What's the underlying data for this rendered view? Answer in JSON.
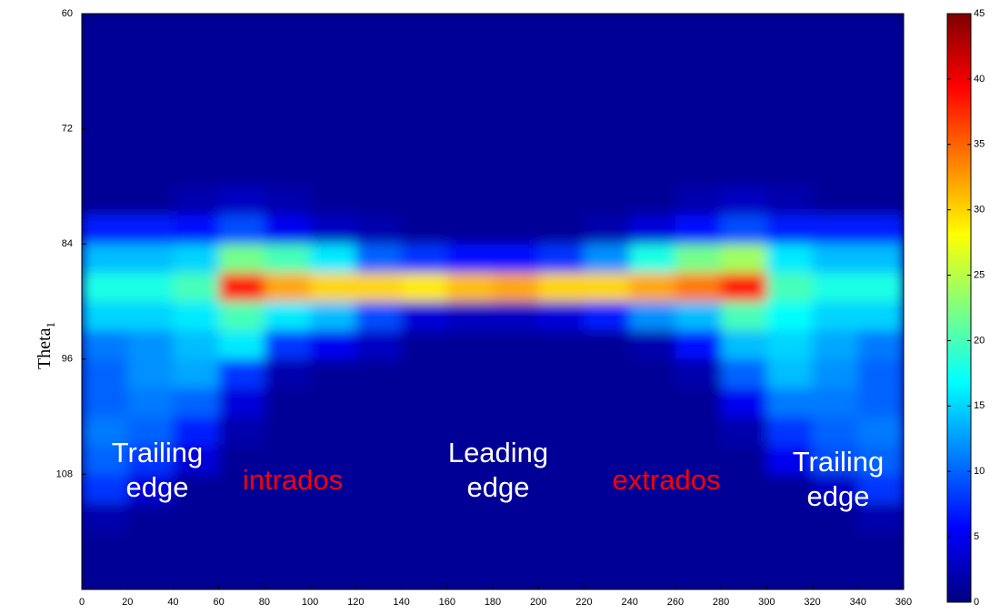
{
  "chart_data": {
    "type": "heatmap",
    "colormap": "jet",
    "ylabel": {
      "text": "Theta",
      "sub": "1"
    },
    "x_bins": [
      0,
      20,
      40,
      60,
      80,
      100,
      120,
      140,
      160,
      180,
      200,
      220,
      240,
      260,
      280,
      300,
      320,
      340,
      360
    ],
    "y_bins": [
      60,
      63,
      66,
      69,
      72,
      75,
      78,
      81,
      84,
      87,
      90,
      93,
      96,
      99,
      102,
      105,
      108,
      111,
      114,
      117,
      120
    ],
    "xlim": [
      0,
      360
    ],
    "xticks": [
      0,
      20,
      40,
      60,
      80,
      100,
      120,
      140,
      160,
      180,
      200,
      220,
      240,
      260,
      280,
      300,
      320,
      340,
      360
    ],
    "ylim": [
      60,
      120
    ],
    "yticks": [
      60,
      72,
      84,
      96,
      108
    ],
    "y_reversed": true,
    "clim": [
      0,
      45
    ],
    "cticks": [
      0,
      5,
      10,
      15,
      20,
      25,
      30,
      35,
      40,
      45
    ],
    "z": [
      [
        1,
        1,
        1,
        1,
        1,
        1,
        1,
        1,
        1,
        1,
        1,
        1,
        1,
        1,
        1,
        1,
        1,
        1
      ],
      [
        1,
        1,
        1,
        1,
        1,
        1,
        1,
        1,
        1,
        1,
        1,
        1,
        1,
        1,
        1,
        1,
        1,
        1
      ],
      [
        1,
        1,
        1,
        1,
        1,
        1,
        1,
        1,
        1,
        1,
        1,
        1,
        1,
        1,
        1,
        1,
        1,
        1
      ],
      [
        1,
        1,
        1,
        1,
        1,
        1,
        1,
        1,
        1,
        1,
        1,
        1,
        1,
        1,
        1,
        1,
        1,
        1
      ],
      [
        1,
        1,
        1,
        1,
        1,
        1,
        1,
        1,
        1,
        1,
        1,
        1,
        1,
        1,
        1,
        1,
        1,
        1
      ],
      [
        1,
        1,
        1,
        1,
        1,
        1,
        1,
        1,
        1,
        1,
        1,
        1,
        1,
        1,
        1,
        1,
        1,
        1
      ],
      [
        1,
        1,
        2,
        3,
        2,
        1,
        1,
        1,
        1,
        1,
        1,
        1,
        1,
        2,
        3,
        2,
        1,
        1
      ],
      [
        7,
        7,
        6,
        9,
        5,
        3,
        2,
        1,
        1,
        1,
        1,
        2,
        4,
        6,
        9,
        7,
        7,
        7
      ],
      [
        14,
        14,
        15,
        22,
        20,
        16,
        10,
        8,
        6,
        6,
        8,
        12,
        18,
        22,
        24,
        16,
        14,
        14
      ],
      [
        18,
        18,
        20,
        38,
        32,
        30,
        30,
        29,
        31,
        32,
        30,
        30,
        32,
        34,
        38,
        20,
        18,
        18
      ],
      [
        15,
        15,
        16,
        20,
        16,
        14,
        9,
        4,
        3,
        3,
        4,
        7,
        12,
        14,
        20,
        17,
        15,
        15
      ],
      [
        11,
        12,
        14,
        16,
        8,
        5,
        3,
        1,
        1,
        1,
        1,
        1,
        2,
        6,
        14,
        15,
        13,
        11
      ],
      [
        10,
        12,
        13,
        8,
        2,
        1,
        1,
        1,
        1,
        1,
        1,
        1,
        1,
        2,
        10,
        14,
        12,
        10
      ],
      [
        10,
        11,
        10,
        4,
        1,
        1,
        1,
        1,
        1,
        1,
        1,
        1,
        1,
        1,
        5,
        11,
        11,
        10
      ],
      [
        11,
        10,
        7,
        2,
        1,
        1,
        1,
        1,
        1,
        1,
        1,
        1,
        1,
        1,
        2,
        8,
        10,
        11
      ],
      [
        10,
        8,
        4,
        1,
        1,
        1,
        1,
        1,
        1,
        1,
        1,
        1,
        1,
        1,
        1,
        5,
        9,
        10
      ],
      [
        8,
        4,
        1,
        1,
        1,
        1,
        1,
        1,
        1,
        1,
        1,
        1,
        1,
        1,
        1,
        1,
        3,
        8
      ],
      [
        2,
        1,
        1,
        1,
        1,
        1,
        1,
        1,
        1,
        1,
        1,
        1,
        1,
        1,
        1,
        1,
        1,
        2
      ],
      [
        1,
        1,
        1,
        1,
        1,
        1,
        1,
        1,
        1,
        1,
        1,
        1,
        1,
        1,
        1,
        1,
        1,
        1
      ],
      [
        1,
        1,
        1,
        1,
        1,
        1,
        1,
        1,
        1,
        1,
        1,
        1,
        1,
        1,
        1,
        1,
        1,
        1
      ]
    ],
    "annotations": [
      {
        "lines": [
          "Trailing",
          "edge"
        ],
        "color": "#ffffff"
      },
      {
        "lines": [
          "intrados"
        ],
        "color": "#ff0000"
      },
      {
        "lines": [
          "Leading",
          "edge"
        ],
        "color": "#ffffff"
      },
      {
        "lines": [
          "extrados"
        ],
        "color": "#ff0000"
      },
      {
        "lines": [
          "Trailing",
          "edge"
        ],
        "color": "#ffffff"
      }
    ]
  }
}
